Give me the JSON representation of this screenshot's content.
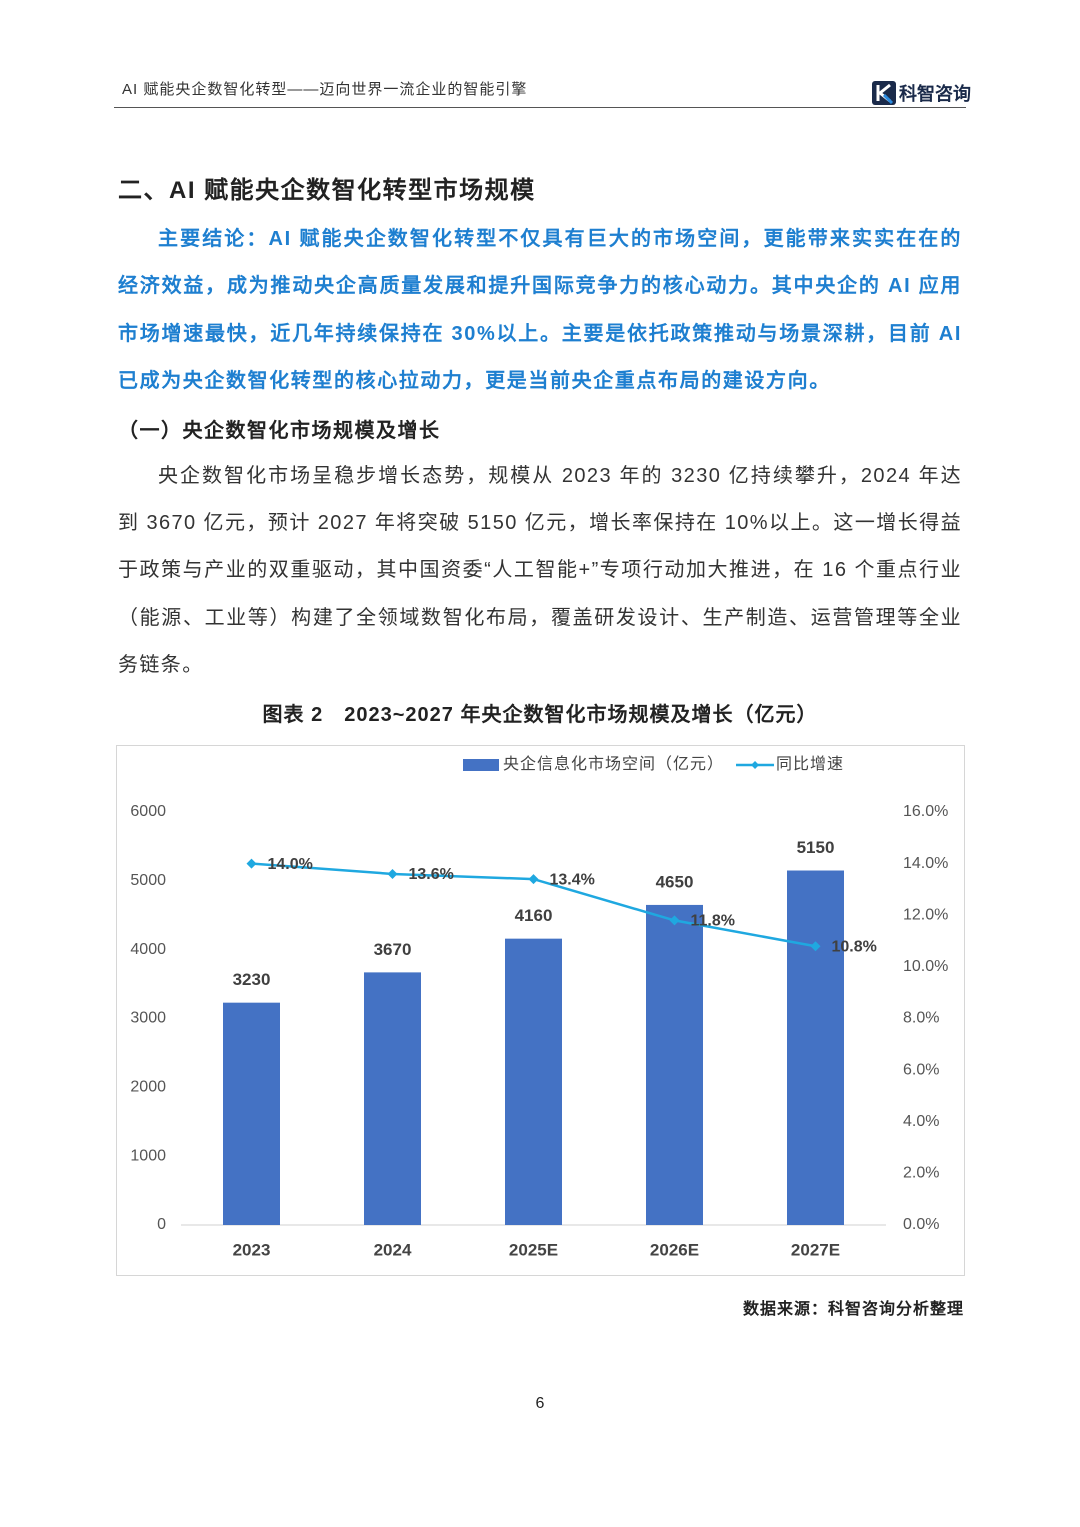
{
  "header": {
    "title": "AI 赋能央企数智化转型——迈向世界一流企业的智能引擎",
    "brand": "科智咨询"
  },
  "section_title": "二、AI 赋能央企数智化转型市场规模",
  "conclusion": "主要结论：AI 赋能央企数智化转型不仅具有巨大的市场空间，更能带来实实在在的经济效益，成为推动央企高质量发展和提升国际竞争力的核心动力。其中央企的 AI 应用市场增速最快，近几年持续保持在 30%以上。主要是依托政策推动与场景深耕，目前 AI 已成为央企数智化转型的核心拉动力，更是当前央企重点布局的建设方向。",
  "subsection_title": "（一）央企数智化市场规模及增长",
  "paragraph": "央企数智化市场呈稳步增长态势，规模从 2023 年的 3230 亿持续攀升，2024 年达到 3670 亿元，预计 2027 年将突破 5150 亿元，增长率保持在 10%以上。这一增长得益于政策与产业的双重驱动，其中国资委“人工智能+”专项行动加大推进，在 16 个重点行业（能源、工业等）构建了全领域数智化布局，覆盖研发设计、生产制造、运营管理等全业务链条。",
  "figure_caption": "图表 2　2023~2027 年央企数智化市场规模及增长（亿元）",
  "chart_data": {
    "type": "bar",
    "categories": [
      "2023",
      "2024",
      "2025E",
      "2026E",
      "2027E"
    ],
    "series": [
      {
        "name": "央企信息化市场空间（亿元）",
        "color": "#4472c4",
        "values": [
          3230,
          3670,
          4160,
          4650,
          5150
        ]
      },
      {
        "name": "同比增速",
        "color": "#1fa8e0",
        "type": "line",
        "axis": "y2",
        "values": [
          14.0,
          13.6,
          13.4,
          11.8,
          10.8
        ],
        "value_labels": [
          "14.0%",
          "13.6%",
          "13.4%",
          "11.8%",
          "10.8%"
        ]
      }
    ],
    "ylim": [
      0,
      6000
    ],
    "yticks": [
      0,
      1000,
      2000,
      3000,
      4000,
      5000,
      6000
    ],
    "y2lim": [
      0,
      16
    ],
    "y2ticks": [
      {
        "value": 0,
        "label": "0.0%"
      },
      {
        "value": 2,
        "label": "2.0%"
      },
      {
        "value": 4,
        "label": "4.0%"
      },
      {
        "value": 6,
        "label": "6.0%"
      },
      {
        "value": 8,
        "label": "8.0%"
      },
      {
        "value": 10,
        "label": "10.0%"
      },
      {
        "value": 12,
        "label": "12.0%"
      },
      {
        "value": 14,
        "label": "14.0%"
      },
      {
        "value": 16,
        "label": "16.0%"
      }
    ],
    "grid": false,
    "legend": "top"
  },
  "source": "数据来源：科智咨询分析整理",
  "page_number": "6"
}
